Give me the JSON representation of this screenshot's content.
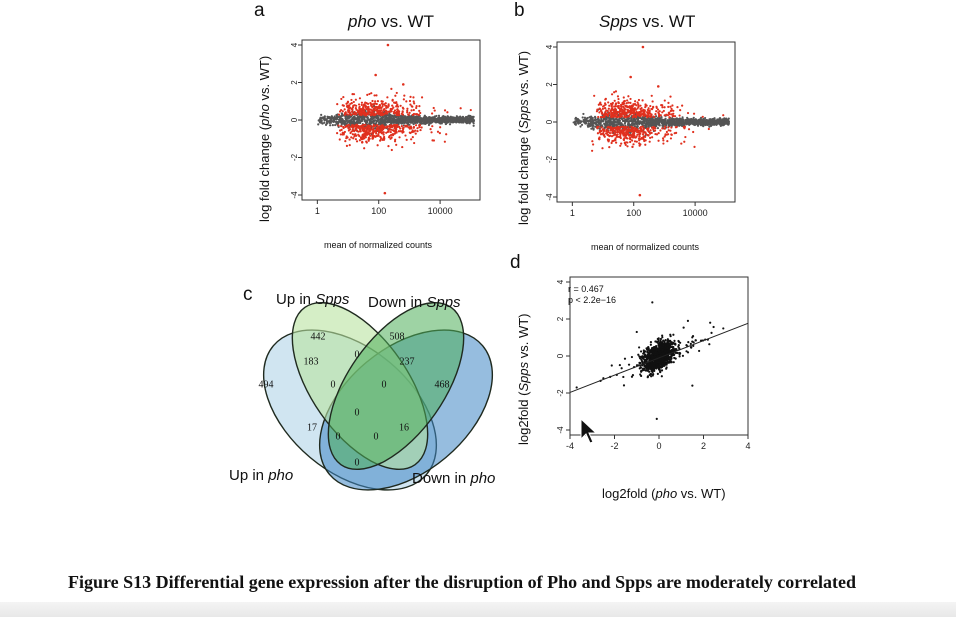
{
  "panels": {
    "a": {
      "letter": "a",
      "title_italic": "pho",
      "title_rest": " vs. WT",
      "ylabel_pre": "log fold change (",
      "ylabel_italic": "pho",
      "ylabel_post": " vs. WT)",
      "xlabel": "mean of normalized counts"
    },
    "b": {
      "letter": "b",
      "title_italic": "Spps",
      "title_rest": " vs. WT",
      "ylabel_pre": "log fold change (",
      "ylabel_italic": "Spps",
      "ylabel_post": " vs. WT)",
      "xlabel": "mean of normalized counts"
    },
    "c": {
      "letter": "c",
      "labels": {
        "up_spps_pre": "Up in ",
        "up_spps_italic": "Spps",
        "down_spps_pre": "Down in ",
        "down_spps_italic": "Spps",
        "up_pho_pre": "Up in ",
        "up_pho_italic": "pho",
        "down_pho_pre": "Down in ",
        "down_pho_italic": "pho"
      },
      "regions": {
        "up_pho_only": "494",
        "up_spps_only": "442",
        "down_spps_only": "508",
        "down_pho_only": "468",
        "up_pho_up_spps": "183",
        "up_spps_down_spps": "0",
        "down_spps_down_pho": "237",
        "up_spps_down_spps_up_pho": "0",
        "up_spps_down_spps_down_pho": "0",
        "all_four": "0",
        "up_pho_down_pho": "0",
        "up_pho_down_spps": "17",
        "up_spps_down_pho": "16",
        "up_pho_down_pho_down_spps": "0",
        "up_pho_down_pho_up_spps": "0"
      }
    },
    "d": {
      "letter": "d",
      "stat_r": "r = 0.467",
      "stat_p": "p < 2.2e−16",
      "ylabel_pre": "log2fold (",
      "ylabel_italic": "Spps",
      "ylabel_post": " vs. WT)",
      "xlabel_pre": "log2fold (",
      "xlabel_italic": "pho",
      "xlabel_post": " vs. WT)"
    }
  },
  "chart_data": [
    {
      "type": "scatter",
      "panel": "a",
      "xscale": "log",
      "x_ticks": [
        "1",
        "100",
        "10000"
      ],
      "y_ticks": [
        "4",
        "2",
        "0",
        "-2",
        "-4"
      ],
      "ylim": [
        -4,
        4
      ],
      "colors": {
        "nonsignificant": "#555555",
        "significant": "#e0301e"
      }
    },
    {
      "type": "scatter",
      "panel": "b",
      "xscale": "log",
      "x_ticks": [
        "1",
        "100",
        "10000"
      ],
      "y_ticks": [
        "4",
        "2",
        "0",
        "-2",
        "-4"
      ],
      "ylim": [
        -4,
        4
      ],
      "colors": {
        "nonsignificant": "#555555",
        "significant": "#e0301e"
      }
    },
    {
      "type": "scatter",
      "panel": "d",
      "xlim": [
        -4,
        4
      ],
      "ylim": [
        -4,
        4
      ],
      "x_ticks": [
        "-4",
        "-2",
        "0",
        "2",
        "4"
      ],
      "y_ticks": [
        "4",
        "2",
        "0",
        "-2",
        "-4"
      ],
      "r": 0.467,
      "fit_line": {
        "intercept": -0.1,
        "slope": 0.467
      }
    }
  ],
  "caption": {
    "text": "Figure S13 Differential gene expression after the disruption of Pho and Spps are moderately correlated"
  }
}
